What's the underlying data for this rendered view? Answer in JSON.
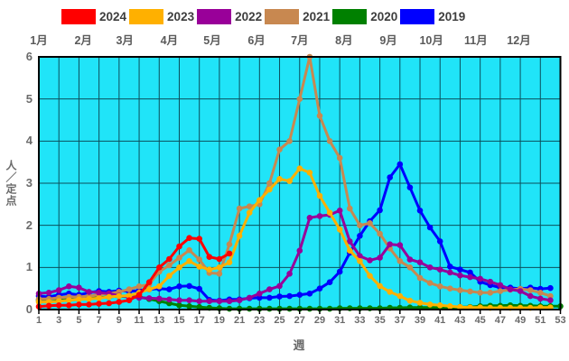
{
  "legend": {
    "items": [
      {
        "label": "2024",
        "color": "#ff0000"
      },
      {
        "label": "2023",
        "color": "#ffb000"
      },
      {
        "label": "2022",
        "color": "#990099"
      },
      {
        "label": "2021",
        "color": "#c88850"
      },
      {
        "label": "2020",
        "color": "#008000"
      },
      {
        "label": "2019",
        "color": "#0000ff"
      }
    ]
  },
  "chart_data": {
    "type": "line",
    "title": "",
    "xlabel": "週",
    "ylabel": "人／定点",
    "x_unit": "week",
    "x_range": [
      1,
      53
    ],
    "ylim": [
      0,
      6
    ],
    "y_ticks": [
      0,
      1,
      2,
      3,
      4,
      5,
      6
    ],
    "x_tick_weeks": [
      1,
      3,
      5,
      7,
      9,
      11,
      13,
      15,
      17,
      19,
      21,
      23,
      25,
      27,
      29,
      31,
      33,
      35,
      37,
      39,
      41,
      43,
      45,
      47,
      49,
      51,
      53
    ],
    "grid": "on",
    "legend_position": "top",
    "month_labels": [
      {
        "label": "1月",
        "week_start": 1.0
      },
      {
        "label": "2月",
        "week_start": 5.43
      },
      {
        "label": "3月",
        "week_start": 9.57
      },
      {
        "label": "4月",
        "week_start": 14.0
      },
      {
        "label": "5月",
        "week_start": 18.29
      },
      {
        "label": "6月",
        "week_start": 22.71
      },
      {
        "label": "7月",
        "week_start": 27.0
      },
      {
        "label": "8月",
        "week_start": 31.43
      },
      {
        "label": "9月",
        "week_start": 35.86
      },
      {
        "label": "10月",
        "week_start": 40.14
      },
      {
        "label": "11月",
        "week_start": 44.57
      },
      {
        "label": "12月",
        "week_start": 48.86
      }
    ],
    "series": [
      {
        "name": "2019",
        "color": "#0000ff",
        "start_week": 1,
        "values": [
          0.32,
          0.3,
          0.35,
          0.38,
          0.35,
          0.4,
          0.44,
          0.42,
          0.45,
          0.43,
          0.45,
          0.48,
          0.5,
          0.48,
          0.55,
          0.56,
          0.49,
          0.23,
          0.21,
          0.24,
          0.24,
          0.27,
          0.28,
          0.28,
          0.31,
          0.32,
          0.35,
          0.38,
          0.5,
          0.65,
          0.9,
          1.35,
          1.75,
          2.1,
          2.36,
          3.14,
          3.45,
          2.9,
          2.35,
          1.95,
          1.62,
          1.02,
          0.95,
          0.88,
          0.66,
          0.58,
          0.52,
          0.52,
          0.49,
          0.52,
          0.49,
          0.51
        ]
      },
      {
        "name": "2020",
        "color": "#008000",
        "start_week": 1,
        "values": [
          0.22,
          0.25,
          0.26,
          0.28,
          0.3,
          0.3,
          0.28,
          0.3,
          0.32,
          0.3,
          0.3,
          0.25,
          0.2,
          0.15,
          0.1,
          0.08,
          0.06,
          0.04,
          0.03,
          0.02,
          0.02,
          0.02,
          0.02,
          0.02,
          0.02,
          0.02,
          0.02,
          0.02,
          0.02,
          0.02,
          0.03,
          0.03,
          0.03,
          0.03,
          0.03,
          0.04,
          0.04,
          0.05,
          0.05,
          0.05,
          0.05,
          0.05,
          0.06,
          0.06,
          0.08,
          0.09,
          0.09,
          0.1,
          0.09,
          0.09,
          0.08,
          0.08,
          0.08
        ]
      },
      {
        "name": "2021",
        "color": "#c88850",
        "start_week": 1,
        "values": [
          0.25,
          0.25,
          0.28,
          0.3,
          0.3,
          0.32,
          0.35,
          0.38,
          0.42,
          0.48,
          0.55,
          0.6,
          0.9,
          1.05,
          1.23,
          1.41,
          1.19,
          0.87,
          0.85,
          1.55,
          2.4,
          2.45,
          2.5,
          3.0,
          3.8,
          4.0,
          5.0,
          6.0,
          4.6,
          4.0,
          3.6,
          2.4,
          2.0,
          2.05,
          1.8,
          1.45,
          1.15,
          1.0,
          0.75,
          0.63,
          0.55,
          0.5,
          0.46,
          0.43,
          0.4,
          0.4,
          0.44,
          0.47,
          0.49,
          0.46,
          0.4,
          0.32
        ]
      },
      {
        "name": "2022",
        "color": "#990099",
        "start_week": 1,
        "values": [
          0.38,
          0.4,
          0.46,
          0.55,
          0.52,
          0.42,
          0.4,
          0.38,
          0.33,
          0.3,
          0.28,
          0.27,
          0.26,
          0.24,
          0.22,
          0.22,
          0.2,
          0.2,
          0.2,
          0.2,
          0.22,
          0.28,
          0.38,
          0.48,
          0.56,
          0.85,
          1.4,
          2.18,
          2.22,
          2.25,
          2.35,
          1.62,
          1.27,
          1.17,
          1.23,
          1.55,
          1.53,
          1.19,
          1.12,
          1.0,
          0.95,
          0.88,
          0.81,
          0.77,
          0.73,
          0.66,
          0.58,
          0.48,
          0.44,
          0.32,
          0.26,
          0.22
        ]
      },
      {
        "name": "2023",
        "color": "#ffb000",
        "start_week": 1,
        "values": [
          0.18,
          0.18,
          0.2,
          0.22,
          0.24,
          0.25,
          0.27,
          0.3,
          0.32,
          0.33,
          0.4,
          0.48,
          0.55,
          0.8,
          1.0,
          1.15,
          1.02,
          0.95,
          1.0,
          1.12,
          1.75,
          2.3,
          2.6,
          2.85,
          3.1,
          3.05,
          3.35,
          3.25,
          2.7,
          2.3,
          1.9,
          1.4,
          1.15,
          0.8,
          0.56,
          0.42,
          0.32,
          0.21,
          0.16,
          0.12,
          0.1,
          0.08,
          0.06,
          0.05,
          0.05,
          0.04,
          0.04,
          0.04,
          0.04,
          0.04,
          0.05,
          0.05
        ]
      },
      {
        "name": "2024",
        "color": "#ff0000",
        "start_week": 1,
        "values": [
          0.07,
          0.09,
          0.1,
          0.1,
          0.12,
          0.12,
          0.14,
          0.15,
          0.18,
          0.22,
          0.35,
          0.65,
          1.0,
          1.2,
          1.5,
          1.7,
          1.68,
          1.25,
          1.2,
          1.33
        ]
      }
    ]
  },
  "colors": {
    "plot_bg": "#20e4f8",
    "grid": "#0b4f5c",
    "border": "#000000",
    "tick": "#000000",
    "axis_text": "#6b6b6b"
  }
}
